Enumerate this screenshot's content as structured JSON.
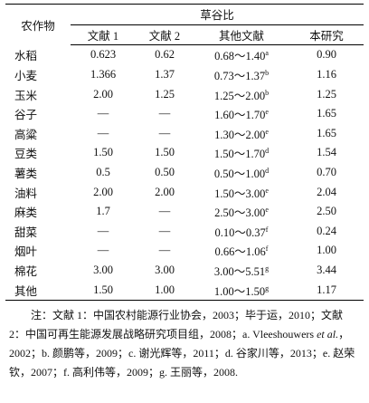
{
  "table": {
    "header": {
      "crop": "农作物",
      "group": "草谷比",
      "columns": [
        "文献 1",
        "文献 2",
        "其他文献",
        "本研究"
      ]
    },
    "rows": [
      [
        "水稻",
        "0.623",
        "0.62",
        {
          "text": "0.68～1.40",
          "sup": "a"
        },
        "0.90"
      ],
      [
        "小麦",
        "1.366",
        "1.37",
        {
          "text": "0.73～1.37",
          "sup": "b"
        },
        "1.16"
      ],
      [
        "玉米",
        "2.00",
        "1.25",
        {
          "text": "1.25～2.00",
          "sup": "b"
        },
        "1.25"
      ],
      [
        "谷子",
        "—",
        "—",
        {
          "text": "1.60～1.70",
          "sup": "e"
        },
        "1.65"
      ],
      [
        "高粱",
        "—",
        "—",
        {
          "text": "1.30～2.00",
          "sup": "e"
        },
        "1.65"
      ],
      [
        "豆类",
        "1.50",
        "1.50",
        {
          "text": "1.50～1.70",
          "sup": "d"
        },
        "1.54"
      ],
      [
        "薯类",
        "0.5",
        "0.50",
        {
          "text": "0.50～1.00",
          "sup": "d"
        },
        "0.70"
      ],
      [
        "油料",
        "2.00",
        "2.00",
        {
          "text": "1.50～3.00",
          "sup": "e"
        },
        "2.04"
      ],
      [
        "麻类",
        "1.7",
        "—",
        {
          "text": "2.50～3.00",
          "sup": "e"
        },
        "2.50"
      ],
      [
        "甜菜",
        "—",
        "—",
        {
          "text": "0.10～0.37",
          "sup": "f"
        },
        "0.24"
      ],
      [
        "烟叶",
        "—",
        "—",
        {
          "text": "0.66～1.06",
          "sup": "f"
        },
        "1.00"
      ],
      [
        "棉花",
        "3.00",
        "3.00",
        {
          "text": "3.00～5.51",
          "sup": "g"
        },
        "3.44"
      ],
      [
        "其他",
        "1.50",
        "1.00",
        {
          "text": "1.00～1.50",
          "sup": "g"
        },
        "1.17"
      ]
    ]
  },
  "note": [
    "注：文献 1：中国农村能源行业协会，2003；毕于运，2010；文献 2：中国可再生能源发展战略研究项目组，2008；a. Vleeshouwers ",
    "et al.",
    "，2002；b. 颜鹏等，2009；c. 谢光辉等，2011；d. 谷家川等，2013；e. 赵荣钦，2007；f. 高利伟等，2009；g. 王丽等，2008."
  ]
}
